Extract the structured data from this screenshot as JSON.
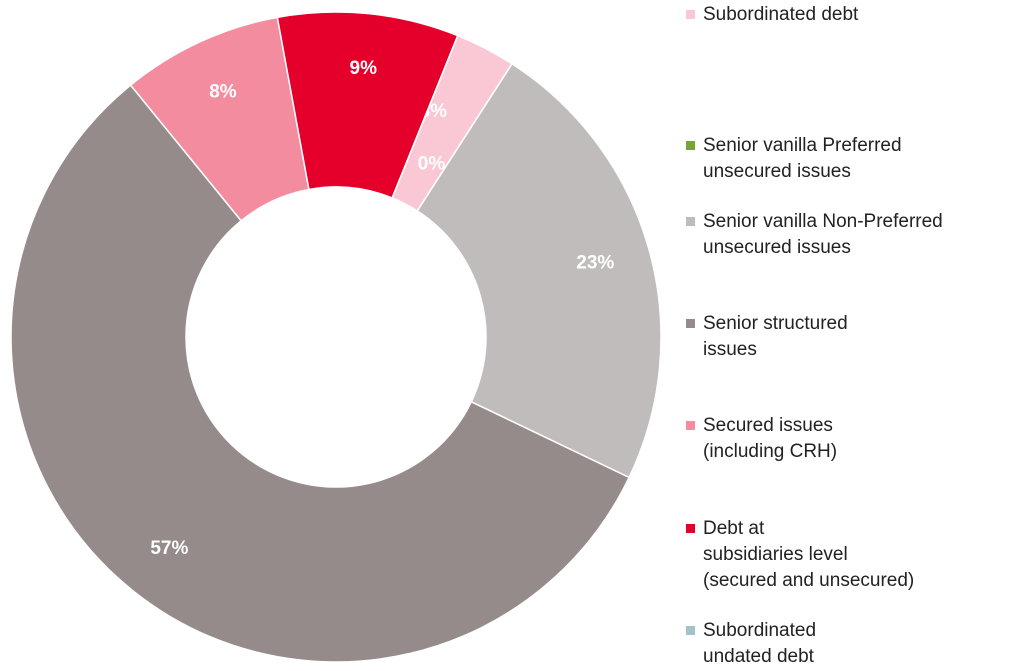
{
  "chart_data": {
    "type": "pie",
    "categories": [
      "Subordinated debt",
      "Senior vanilla Preferred\nunsecured issues",
      "Senior vanilla Non-Preferred\nunsecured issues",
      "Senior structured\nissues",
      "Secured issues\n(including CRH)",
      "Debt at\nsubsidiaries level\n(secured and unsecured)",
      "Subordinated\nundated debt"
    ],
    "values": [
      3,
      0,
      23,
      57,
      8,
      9,
      0
    ],
    "value_labels": [
      "3%",
      "0%",
      "23%",
      "57%",
      "8%",
      "9%",
      "0%"
    ],
    "colors": [
      "#f9c8d4",
      "#77a33a",
      "#c0bcbb",
      "#958b8a",
      "#f48ca0",
      "#e4002b",
      "#a5c3c6"
    ]
  }
}
